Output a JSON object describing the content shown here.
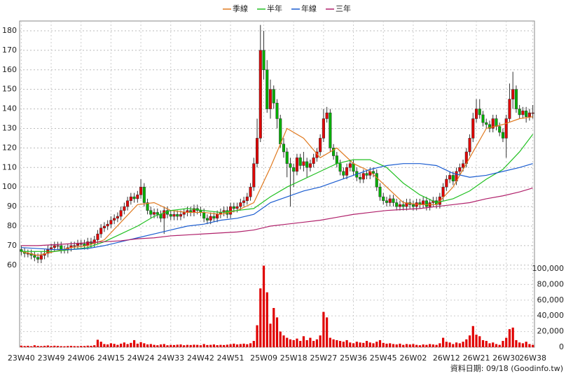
{
  "chart_data": {
    "type": "candlestick",
    "legend_position": "top",
    "grid": true,
    "categories": [
      "23W40",
      null,
      null,
      null,
      null,
      null,
      null,
      null,
      null,
      "23W49",
      null,
      null,
      null,
      null,
      null,
      null,
      null,
      null,
      "24W06",
      null,
      null,
      null,
      null,
      null,
      null,
      null,
      null,
      "24W15",
      null,
      null,
      null,
      null,
      null,
      null,
      null,
      null,
      "24W24",
      null,
      null,
      null,
      null,
      null,
      null,
      null,
      null,
      "24W33",
      null,
      null,
      null,
      null,
      null,
      null,
      null,
      null,
      "24W42",
      null,
      null,
      null,
      null,
      null,
      null,
      null,
      null,
      "24W51",
      null,
      null,
      null,
      null,
      null,
      null,
      null,
      null,
      null,
      "25W09",
      null,
      null,
      null,
      null,
      null,
      null,
      null,
      null,
      "25W18",
      null,
      null,
      null,
      null,
      null,
      null,
      null,
      null,
      "25W27",
      null,
      null,
      null,
      null,
      null,
      null,
      null,
      null,
      "25W36",
      null,
      null,
      null,
      null,
      null,
      null,
      null,
      null,
      "25W45",
      null,
      null,
      null,
      null,
      null,
      null,
      null,
      null,
      "26W02",
      null,
      null,
      null,
      null,
      null,
      null,
      null,
      null,
      null,
      "26W12",
      null,
      null,
      null,
      null,
      null,
      null,
      null,
      null,
      "26W21",
      null,
      null,
      null,
      null,
      null,
      null,
      null,
      null,
      "26W30",
      null,
      null,
      null,
      null,
      null,
      null,
      null,
      "26W38"
    ],
    "open": [
      68,
      67,
      66,
      66,
      65,
      64,
      63,
      65,
      66,
      68,
      69,
      70,
      70,
      68,
      68,
      69,
      70,
      70,
      71,
      71,
      70,
      72,
      71,
      73,
      76,
      79,
      80,
      81,
      83,
      84,
      85,
      88,
      90,
      93,
      95,
      94,
      96,
      100,
      92,
      88,
      86,
      87,
      86,
      84,
      88,
      86,
      85,
      86,
      85,
      86,
      87,
      88,
      87,
      89,
      88,
      87,
      84,
      83,
      85,
      84,
      86,
      87,
      88,
      86,
      90,
      89,
      90,
      92,
      93,
      95,
      100,
      112,
      125,
      170,
      160,
      140,
      150,
      143,
      135,
      122,
      118,
      112,
      110,
      108,
      115,
      111,
      113,
      110,
      112,
      115,
      118,
      125,
      135,
      138,
      120,
      116,
      112,
      108,
      106,
      110,
      112,
      108,
      105,
      104,
      107,
      106,
      108,
      107,
      100,
      95,
      93,
      92,
      94,
      92,
      90,
      91,
      90,
      92,
      91,
      90,
      92,
      91,
      93,
      90,
      92,
      93,
      91,
      95,
      100,
      104,
      106,
      103,
      108,
      110,
      112,
      118,
      125,
      135,
      140,
      137,
      133,
      132,
      130,
      135,
      131,
      128,
      125,
      135,
      145,
      150,
      140,
      137,
      139,
      136,
      138
    ],
    "high": [
      70,
      69,
      68,
      68,
      67,
      66,
      67,
      68,
      70,
      71,
      72,
      72,
      72,
      70,
      71,
      72,
      72,
      73,
      73,
      73,
      74,
      74,
      75,
      78,
      81,
      82,
      83,
      85,
      86,
      87,
      90,
      92,
      95,
      97,
      97,
      98,
      104,
      102,
      94,
      90,
      89,
      89,
      88,
      90,
      90,
      88,
      88,
      88,
      88,
      89,
      90,
      90,
      91,
      91,
      90,
      89,
      86,
      87,
      87,
      88,
      89,
      90,
      90,
      92,
      92,
      92,
      94,
      95,
      97,
      102,
      115,
      135,
      183,
      180,
      165,
      155,
      152,
      145,
      137,
      125,
      120,
      115,
      112,
      117,
      117,
      118,
      115,
      114,
      117,
      120,
      127,
      140,
      141,
      140,
      122,
      118,
      114,
      110,
      112,
      114,
      114,
      110,
      107,
      109,
      109,
      110,
      110,
      109,
      102,
      97,
      95,
      96,
      96,
      94,
      93,
      93,
      94,
      94,
      93,
      94,
      94,
      95,
      95,
      94,
      95,
      95,
      97,
      102,
      106,
      108,
      108,
      110,
      112,
      114,
      120,
      127,
      138,
      145,
      145,
      139,
      135,
      134,
      137,
      137,
      133,
      130,
      137,
      153,
      159,
      152,
      142,
      141,
      141,
      140,
      142
    ],
    "low": [
      65,
      64,
      64,
      63,
      62,
      61,
      61,
      63,
      64,
      66,
      67,
      68,
      66,
      66,
      66,
      67,
      68,
      68,
      69,
      68,
      68,
      69,
      69,
      71,
      74,
      77,
      78,
      79,
      81,
      82,
      83,
      86,
      88,
      91,
      92,
      92,
      94,
      90,
      86,
      84,
      84,
      84,
      82,
      76,
      84,
      83,
      83,
      83,
      83,
      84,
      85,
      85,
      85,
      86,
      85,
      82,
      81,
      81,
      82,
      82,
      84,
      85,
      84,
      84,
      87,
      87,
      88,
      90,
      91,
      93,
      98,
      110,
      123,
      155,
      138,
      135,
      140,
      130,
      120,
      115,
      105,
      90,
      100,
      106,
      109,
      108,
      105,
      108,
      110,
      113,
      116,
      123,
      133,
      118,
      114,
      110,
      106,
      104,
      104,
      108,
      106,
      103,
      102,
      102,
      104,
      104,
      105,
      98,
      93,
      91,
      90,
      90,
      90,
      88,
      88,
      88,
      88,
      89,
      88,
      88,
      89,
      89,
      88,
      88,
      90,
      89,
      89,
      93,
      98,
      102,
      101,
      101,
      106,
      108,
      110,
      116,
      123,
      133,
      135,
      131,
      130,
      128,
      128,
      129,
      126,
      123,
      115,
      133,
      140,
      138,
      135,
      135,
      133,
      134,
      135
    ],
    "close": [
      67,
      66,
      66,
      65,
      64,
      63,
      65,
      66,
      68,
      69,
      70,
      70,
      68,
      68,
      69,
      70,
      70,
      71,
      71,
      70,
      72,
      71,
      73,
      76,
      79,
      80,
      81,
      83,
      84,
      85,
      88,
      90,
      93,
      95,
      94,
      96,
      100,
      92,
      88,
      86,
      87,
      86,
      84,
      88,
      86,
      85,
      86,
      85,
      86,
      87,
      88,
      87,
      89,
      88,
      87,
      84,
      83,
      85,
      84,
      86,
      87,
      88,
      86,
      90,
      89,
      90,
      92,
      93,
      95,
      100,
      112,
      125,
      170,
      160,
      140,
      150,
      143,
      135,
      122,
      118,
      112,
      110,
      108,
      115,
      111,
      113,
      110,
      112,
      115,
      118,
      125,
      135,
      138,
      120,
      116,
      112,
      108,
      106,
      110,
      112,
      108,
      105,
      104,
      107,
      106,
      108,
      107,
      100,
      95,
      93,
      92,
      94,
      92,
      90,
      91,
      90,
      92,
      91,
      90,
      92,
      91,
      93,
      90,
      92,
      93,
      91,
      95,
      100,
      104,
      106,
      103,
      108,
      110,
      112,
      118,
      125,
      135,
      140,
      137,
      133,
      132,
      130,
      135,
      131,
      128,
      125,
      135,
      145,
      150,
      140,
      137,
      139,
      136,
      138,
      138
    ],
    "up_color": "#e00000",
    "down_color": "#00b000",
    "volume": [
      2000,
      1500,
      1800,
      1200,
      2500,
      1600,
      1400,
      1800,
      2200,
      1500,
      1900,
      1600,
      1300,
      1200,
      1500,
      1700,
      1400,
      1300,
      1600,
      1500,
      2000,
      1800,
      2500,
      9500,
      7000,
      4000,
      3500,
      5000,
      4200,
      3000,
      4500,
      6000,
      4000,
      5500,
      9000,
      4500,
      6500,
      5000,
      3500,
      4000,
      3000,
      2500,
      3500,
      4000,
      2500,
      3000,
      2800,
      3200,
      3500,
      2500,
      3000,
      2800,
      3200,
      3000,
      2500,
      4000,
      2800,
      3000,
      3500,
      2600,
      3000,
      2800,
      3200,
      3800,
      4500,
      3500,
      4000,
      4500,
      3800,
      5000,
      8000,
      28000,
      75000,
      104000,
      70000,
      30000,
      50000,
      38000,
      20000,
      15000,
      12000,
      10000,
      9000,
      11000,
      8000,
      14000,
      9000,
      12000,
      8000,
      10000,
      15000,
      45000,
      38000,
      12000,
      10000,
      9000,
      8000,
      7000,
      9000,
      6000,
      5000,
      7000,
      6000,
      5500,
      8000,
      6000,
      5000,
      7000,
      9000,
      5500,
      4500,
      5000,
      4000,
      3500,
      4500,
      3000,
      4000,
      3500,
      4000,
      3000,
      2500,
      3500,
      3000,
      4000,
      3500,
      3000,
      5000,
      12000,
      7000,
      6000,
      4000,
      6000,
      5000,
      7000,
      10000,
      15000,
      27000,
      16000,
      14000,
      9000,
      8000,
      5000,
      6000,
      4000,
      3000,
      8000,
      12000,
      23000,
      25000,
      9000,
      6000,
      5000,
      7000,
      4000,
      3000
    ],
    "volume_color": "#e00000",
    "ylim": [
      18,
      185
    ],
    "yticks": [
      60,
      70,
      80,
      90,
      100,
      110,
      120,
      130,
      140,
      150,
      160,
      170,
      180
    ],
    "y2lim": [
      0,
      416000
    ],
    "y2ticks": [
      0,
      {
        "value": 20000,
        "label": "20,000"
      },
      {
        "value": 40000,
        "label": "40,000"
      },
      {
        "value": 60000,
        "label": "60,000"
      },
      {
        "value": 80000,
        "label": "80,000"
      },
      {
        "value": 100000,
        "label": "100,000"
      }
    ],
    "lines": [
      {
        "name": "季線",
        "color": "#e07a20",
        "x": [
          0,
          5,
          10,
          15,
          20,
          25,
          30,
          35,
          40,
          45,
          50,
          55,
          60,
          65,
          70,
          75,
          80,
          85,
          90,
          95,
          100,
          105,
          110,
          115,
          120,
          125,
          130,
          135,
          140,
          145,
          150,
          154
        ],
        "values": [
          67,
          65,
          67,
          69,
          70,
          73,
          82,
          91,
          92,
          88,
          87,
          87,
          86,
          88,
          92,
          110,
          130,
          125,
          115,
          120,
          112,
          108,
          100,
          92,
          91,
          91,
          100,
          115,
          130,
          132,
          135,
          136
        ]
      },
      {
        "name": "半年",
        "color": "#22c022",
        "x": [
          0,
          5,
          10,
          15,
          20,
          25,
          30,
          35,
          40,
          45,
          50,
          55,
          60,
          65,
          70,
          75,
          80,
          85,
          90,
          95,
          100,
          105,
          110,
          115,
          120,
          125,
          130,
          135,
          140,
          145,
          150,
          154
        ],
        "values": [
          67,
          67,
          67,
          68,
          69,
          72,
          76,
          80,
          85,
          88,
          89,
          88,
          87,
          88,
          89,
          95,
          100,
          104,
          108,
          112,
          114,
          114,
          110,
          102,
          96,
          92,
          94,
          98,
          104,
          109,
          118,
          127
        ]
      },
      {
        "name": "年線",
        "color": "#1a5cd0",
        "x": [
          0,
          5,
          10,
          15,
          20,
          25,
          30,
          35,
          40,
          45,
          50,
          55,
          60,
          65,
          70,
          75,
          80,
          85,
          90,
          95,
          100,
          105,
          110,
          115,
          120,
          125,
          130,
          135,
          140,
          145,
          150,
          154
        ],
        "values": [
          69,
          68.5,
          68,
          68,
          68.5,
          70,
          72,
          74,
          76,
          78,
          80,
          81,
          83,
          84,
          86,
          92,
          95,
          98,
          100,
          103,
          106,
          109,
          111,
          112,
          112,
          111,
          107,
          105,
          106,
          108,
          110,
          112
        ]
      },
      {
        "name": "三年",
        "color": "#b0206a",
        "x": [
          0,
          5,
          10,
          15,
          20,
          25,
          30,
          35,
          40,
          45,
          50,
          55,
          60,
          65,
          70,
          75,
          80,
          85,
          90,
          95,
          100,
          105,
          110,
          115,
          120,
          125,
          130,
          135,
          140,
          145,
          150,
          154
        ],
        "values": [
          70,
          70,
          70.5,
          71,
          71.5,
          72,
          72.5,
          73.5,
          74,
          75,
          75.5,
          76,
          76.5,
          77,
          78,
          80,
          81,
          82,
          83,
          84.5,
          86,
          87,
          88,
          88.5,
          89,
          90,
          91,
          92,
          94,
          95.5,
          97.5,
          99.5
        ]
      }
    ],
    "footnote": "資料日期: 09/18 (Goodinfo.tw)"
  }
}
